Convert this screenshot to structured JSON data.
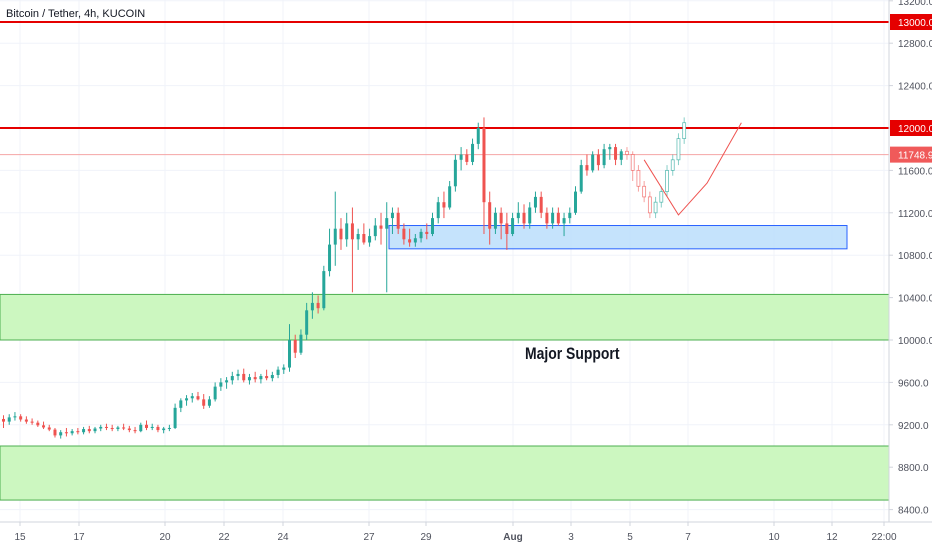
{
  "header": {
    "symbol_title": "Bitcoin / Tether, 4h, KUCOIN"
  },
  "annotation": {
    "text": "Major Support"
  },
  "colors": {
    "up": "#26a69a",
    "down": "#ef5350",
    "resistance": "#e50000",
    "price_line": "#f5a5a5",
    "price_label_bg": "#f05a5a",
    "support_zone_fill": "#ccf7c0",
    "support_zone_stroke": "#4caf50",
    "range_fill": "#bbdefb",
    "range_stroke": "#2962ff",
    "grid": "#f0f3fa",
    "axis_text": "#50535e"
  },
  "chart_data": {
    "type": "candlestick",
    "title": "Bitcoin / Tether, 4h, KUCOIN",
    "interval": "4h",
    "y_axis": {
      "position": "right",
      "ylim": [
        8150,
        13350
      ],
      "ticks": [
        "13200.0",
        "12800.0",
        "12400.0",
        "12000.0",
        "11600.0",
        "11200.0",
        "10800.0",
        "10400.0",
        "10000.0",
        "9600.0",
        "9200.0",
        "8800.0",
        "8400.0"
      ]
    },
    "x_axis": {
      "ticks": [
        "15",
        "17",
        "20",
        "22",
        "24",
        "27",
        "29",
        "Aug",
        "3",
        "5",
        "7",
        "10",
        "12",
        "22:00"
      ]
    },
    "grid": true,
    "price_labels": [
      {
        "value": "13000.0",
        "kind": "resistance"
      },
      {
        "value": "12000.0",
        "kind": "resistance"
      },
      {
        "value": "11748.9",
        "kind": "last_price"
      }
    ],
    "horizontal_lines": [
      {
        "price": 13000,
        "kind": "resistance"
      },
      {
        "price": 12000,
        "kind": "resistance"
      },
      {
        "price": 11748.9,
        "kind": "last_price"
      }
    ],
    "zones": [
      {
        "from": 10000,
        "to": 10430,
        "kind": "support"
      },
      {
        "from": 8490,
        "to": 9000,
        "kind": "support"
      },
      {
        "from": 10860,
        "to": 11080,
        "kind": "range"
      }
    ],
    "candles": [
      {
        "o": 9255,
        "h": 9290,
        "l": 9170,
        "c": 9230
      },
      {
        "o": 9230,
        "h": 9300,
        "l": 9200,
        "c": 9270
      },
      {
        "o": 9270,
        "h": 9320,
        "l": 9240,
        "c": 9280
      },
      {
        "o": 9280,
        "h": 9300,
        "l": 9230,
        "c": 9250
      },
      {
        "o": 9250,
        "h": 9280,
        "l": 9210,
        "c": 9230
      },
      {
        "o": 9230,
        "h": 9260,
        "l": 9200,
        "c": 9220
      },
      {
        "o": 9220,
        "h": 9240,
        "l": 9180,
        "c": 9195
      },
      {
        "o": 9195,
        "h": 9230,
        "l": 9160,
        "c": 9175
      },
      {
        "o": 9175,
        "h": 9200,
        "l": 9140,
        "c": 9155
      },
      {
        "o": 9155,
        "h": 9170,
        "l": 9080,
        "c": 9100
      },
      {
        "o": 9100,
        "h": 9150,
        "l": 9070,
        "c": 9130
      },
      {
        "o": 9130,
        "h": 9170,
        "l": 9090,
        "c": 9120
      },
      {
        "o": 9120,
        "h": 9160,
        "l": 9100,
        "c": 9140
      },
      {
        "o": 9140,
        "h": 9170,
        "l": 9110,
        "c": 9130
      },
      {
        "o": 9130,
        "h": 9180,
        "l": 9110,
        "c": 9160
      },
      {
        "o": 9160,
        "h": 9190,
        "l": 9120,
        "c": 9140
      },
      {
        "o": 9140,
        "h": 9180,
        "l": 9120,
        "c": 9165
      },
      {
        "o": 9165,
        "h": 9200,
        "l": 9140,
        "c": 9180
      },
      {
        "o": 9180,
        "h": 9210,
        "l": 9150,
        "c": 9170
      },
      {
        "o": 9170,
        "h": 9200,
        "l": 9140,
        "c": 9160
      },
      {
        "o": 9160,
        "h": 9190,
        "l": 9140,
        "c": 9175
      },
      {
        "o": 9175,
        "h": 9210,
        "l": 9150,
        "c": 9165
      },
      {
        "o": 9165,
        "h": 9190,
        "l": 9130,
        "c": 9150
      },
      {
        "o": 9150,
        "h": 9180,
        "l": 9120,
        "c": 9140
      },
      {
        "o": 9140,
        "h": 9220,
        "l": 9130,
        "c": 9200
      },
      {
        "o": 9200,
        "h": 9240,
        "l": 9150,
        "c": 9170
      },
      {
        "o": 9170,
        "h": 9210,
        "l": 9150,
        "c": 9180
      },
      {
        "o": 9180,
        "h": 9200,
        "l": 9130,
        "c": 9150
      },
      {
        "o": 9150,
        "h": 9180,
        "l": 9120,
        "c": 9165
      },
      {
        "o": 9165,
        "h": 9200,
        "l": 9140,
        "c": 9170
      },
      {
        "o": 9170,
        "h": 9400,
        "l": 9160,
        "c": 9360
      },
      {
        "o": 9360,
        "h": 9450,
        "l": 9320,
        "c": 9430
      },
      {
        "o": 9430,
        "h": 9480,
        "l": 9380,
        "c": 9450
      },
      {
        "o": 9450,
        "h": 9500,
        "l": 9410,
        "c": 9470
      },
      {
        "o": 9470,
        "h": 9510,
        "l": 9430,
        "c": 9440
      },
      {
        "o": 9440,
        "h": 9490,
        "l": 9350,
        "c": 9380
      },
      {
        "o": 9380,
        "h": 9470,
        "l": 9360,
        "c": 9440
      },
      {
        "o": 9440,
        "h": 9600,
        "l": 9420,
        "c": 9560
      },
      {
        "o": 9560,
        "h": 9640,
        "l": 9520,
        "c": 9600
      },
      {
        "o": 9600,
        "h": 9650,
        "l": 9540,
        "c": 9620
      },
      {
        "o": 9620,
        "h": 9700,
        "l": 9580,
        "c": 9660
      },
      {
        "o": 9660,
        "h": 9720,
        "l": 9620,
        "c": 9680
      },
      {
        "o": 9680,
        "h": 9730,
        "l": 9600,
        "c": 9620
      },
      {
        "o": 9620,
        "h": 9680,
        "l": 9580,
        "c": 9650
      },
      {
        "o": 9650,
        "h": 9700,
        "l": 9600,
        "c": 9630
      },
      {
        "o": 9630,
        "h": 9680,
        "l": 9590,
        "c": 9660
      },
      {
        "o": 9660,
        "h": 9720,
        "l": 9620,
        "c": 9640
      },
      {
        "o": 9640,
        "h": 9700,
        "l": 9610,
        "c": 9670
      },
      {
        "o": 9670,
        "h": 9750,
        "l": 9640,
        "c": 9720
      },
      {
        "o": 9720,
        "h": 9770,
        "l": 9680,
        "c": 9740
      },
      {
        "o": 9740,
        "h": 10150,
        "l": 9700,
        "c": 10000
      },
      {
        "o": 10000,
        "h": 10050,
        "l": 9830,
        "c": 9880
      },
      {
        "o": 9880,
        "h": 10100,
        "l": 9860,
        "c": 10050
      },
      {
        "o": 10050,
        "h": 10350,
        "l": 10000,
        "c": 10280
      },
      {
        "o": 10280,
        "h": 10450,
        "l": 10200,
        "c": 10350
      },
      {
        "o": 10350,
        "h": 10420,
        "l": 10250,
        "c": 10300
      },
      {
        "o": 10300,
        "h": 10700,
        "l": 10280,
        "c": 10650
      },
      {
        "o": 10650,
        "h": 11050,
        "l": 10600,
        "c": 10900
      },
      {
        "o": 10900,
        "h": 11400,
        "l": 10700,
        "c": 11050
      },
      {
        "o": 11050,
        "h": 11150,
        "l": 10850,
        "c": 10950
      },
      {
        "o": 10950,
        "h": 11200,
        "l": 10880,
        "c": 11100
      },
      {
        "o": 11100,
        "h": 11250,
        "l": 10450,
        "c": 10950
      },
      {
        "o": 10950,
        "h": 11050,
        "l": 10850,
        "c": 11000
      },
      {
        "o": 11000,
        "h": 11100,
        "l": 10900,
        "c": 10920
      },
      {
        "o": 10920,
        "h": 11050,
        "l": 10880,
        "c": 10980
      },
      {
        "o": 10980,
        "h": 11150,
        "l": 10940,
        "c": 11080
      },
      {
        "o": 11080,
        "h": 11200,
        "l": 10900,
        "c": 11050
      },
      {
        "o": 11050,
        "h": 11300,
        "l": 10450,
        "c": 11150
      },
      {
        "o": 11150,
        "h": 11250,
        "l": 11000,
        "c": 11200
      },
      {
        "o": 11200,
        "h": 11250,
        "l": 11000,
        "c": 11050
      },
      {
        "o": 11050,
        "h": 11100,
        "l": 10900,
        "c": 10950
      },
      {
        "o": 10950,
        "h": 11050,
        "l": 10880,
        "c": 10920
      },
      {
        "o": 10920,
        "h": 11000,
        "l": 10880,
        "c": 10960
      },
      {
        "o": 10960,
        "h": 11050,
        "l": 10920,
        "c": 11020
      },
      {
        "o": 11020,
        "h": 11100,
        "l": 10950,
        "c": 11000
      },
      {
        "o": 11000,
        "h": 11200,
        "l": 10980,
        "c": 11150
      },
      {
        "o": 11150,
        "h": 11350,
        "l": 11100,
        "c": 11300
      },
      {
        "o": 11300,
        "h": 11400,
        "l": 11150,
        "c": 11250
      },
      {
        "o": 11250,
        "h": 11500,
        "l": 11230,
        "c": 11450
      },
      {
        "o": 11450,
        "h": 11750,
        "l": 11400,
        "c": 11700
      },
      {
        "o": 11700,
        "h": 11820,
        "l": 11600,
        "c": 11750
      },
      {
        "o": 11750,
        "h": 11800,
        "l": 11650,
        "c": 11680
      },
      {
        "o": 11680,
        "h": 11900,
        "l": 11650,
        "c": 11850
      },
      {
        "o": 11850,
        "h": 12050,
        "l": 11800,
        "c": 12000
      },
      {
        "o": 12000,
        "h": 12100,
        "l": 11000,
        "c": 11300
      },
      {
        "o": 11300,
        "h": 11400,
        "l": 10900,
        "c": 11050
      },
      {
        "o": 11050,
        "h": 11250,
        "l": 11000,
        "c": 11200
      },
      {
        "o": 11200,
        "h": 11250,
        "l": 10950,
        "c": 11100
      },
      {
        "o": 11100,
        "h": 11200,
        "l": 10850,
        "c": 11000
      },
      {
        "o": 11000,
        "h": 11200,
        "l": 10980,
        "c": 11150
      },
      {
        "o": 11150,
        "h": 11300,
        "l": 11100,
        "c": 11200
      },
      {
        "o": 11200,
        "h": 11280,
        "l": 11050,
        "c": 11100
      },
      {
        "o": 11100,
        "h": 11300,
        "l": 11050,
        "c": 11250
      },
      {
        "o": 11250,
        "h": 11400,
        "l": 11200,
        "c": 11350
      },
      {
        "o": 11350,
        "h": 11400,
        "l": 11150,
        "c": 11200
      },
      {
        "o": 11200,
        "h": 11250,
        "l": 11050,
        "c": 11100
      },
      {
        "o": 11100,
        "h": 11250,
        "l": 11050,
        "c": 11200
      },
      {
        "o": 11200,
        "h": 11250,
        "l": 11080,
        "c": 11100
      },
      {
        "o": 11100,
        "h": 11200,
        "l": 10980,
        "c": 11150
      },
      {
        "o": 11150,
        "h": 11250,
        "l": 11100,
        "c": 11200
      },
      {
        "o": 11200,
        "h": 11450,
        "l": 11180,
        "c": 11400
      },
      {
        "o": 11400,
        "h": 11700,
        "l": 11380,
        "c": 11650
      },
      {
        "o": 11650,
        "h": 11750,
        "l": 11550,
        "c": 11600
      },
      {
        "o": 11600,
        "h": 11780,
        "l": 11580,
        "c": 11750
      },
      {
        "o": 11750,
        "h": 11800,
        "l": 11600,
        "c": 11650
      },
      {
        "o": 11650,
        "h": 11850,
        "l": 11620,
        "c": 11800
      },
      {
        "o": 11800,
        "h": 11850,
        "l": 11700,
        "c": 11820
      },
      {
        "o": 11820,
        "h": 11850,
        "l": 11650,
        "c": 11700
      },
      {
        "o": 11700,
        "h": 11800,
        "l": 11650,
        "c": 11780
      },
      {
        "o": 11780,
        "h": 11820,
        "l": 11700,
        "c": 11750
      },
      {
        "o": 11750,
        "h": 11780,
        "l": 11500,
        "c": 11600
      },
      {
        "o": 11600,
        "h": 11650,
        "l": 11400,
        "c": 11450
      },
      {
        "o": 11450,
        "h": 11500,
        "l": 11300,
        "c": 11350
      },
      {
        "o": 11350,
        "h": 11400,
        "l": 11150,
        "c": 11200
      },
      {
        "o": 11200,
        "h": 11350,
        "l": 11150,
        "c": 11300
      },
      {
        "o": 11300,
        "h": 11450,
        "l": 11250,
        "c": 11400
      },
      {
        "o": 11400,
        "h": 11650,
        "l": 11350,
        "c": 11600
      },
      {
        "o": 11600,
        "h": 11750,
        "l": 11550,
        "c": 11700
      },
      {
        "o": 11700,
        "h": 11950,
        "l": 11650,
        "c": 11900
      },
      {
        "o": 11900,
        "h": 12100,
        "l": 11850,
        "c": 12050
      }
    ],
    "projection": {
      "path_times": [
        112,
        118,
        123,
        129
      ],
      "path_prices": [
        11700,
        11180,
        11480,
        12050
      ],
      "ghost_from_index": 109
    }
  }
}
